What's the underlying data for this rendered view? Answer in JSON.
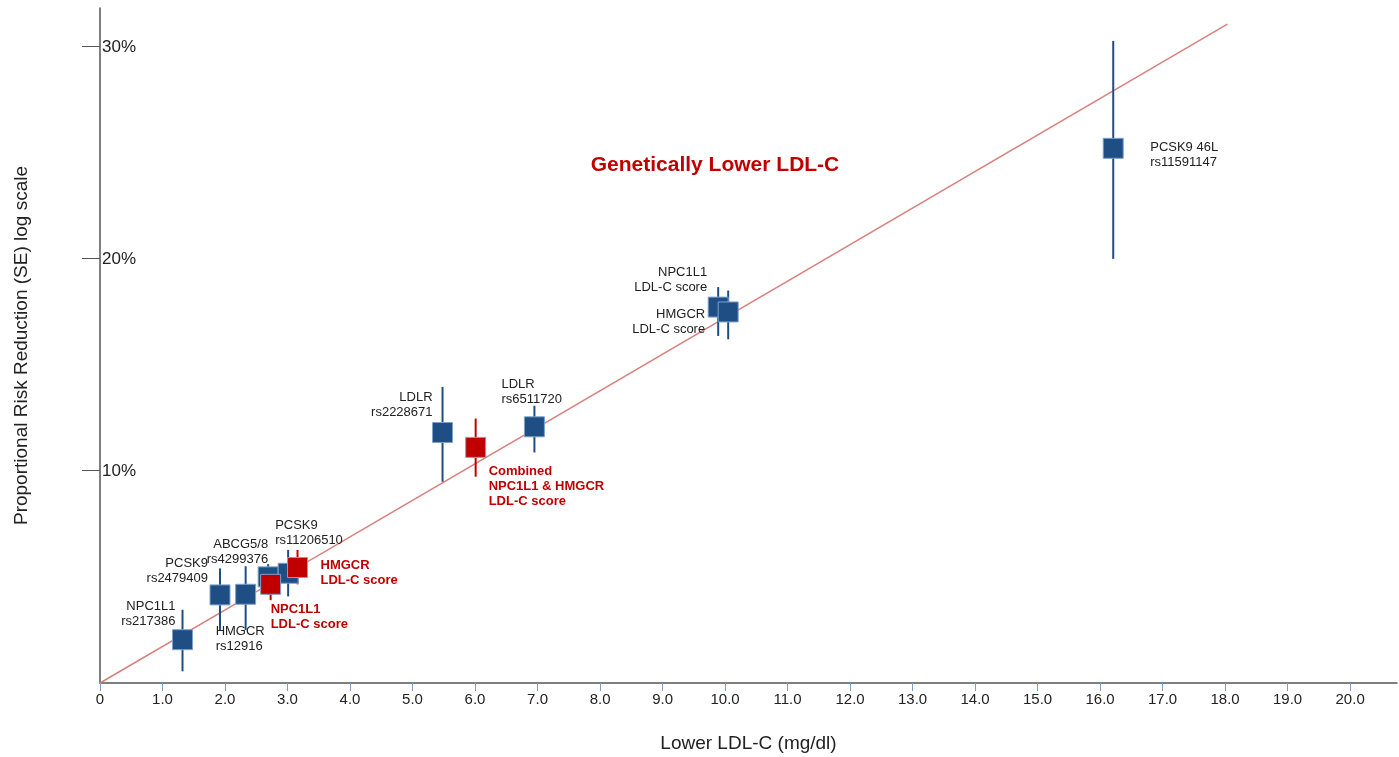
{
  "chart_data": {
    "type": "scatter",
    "title": "Genetically Lower LDL-C",
    "xlabel": "Lower LDL-C (mg/dl)",
    "ylabel": "Proportional Risk Reduction (SE) log scale",
    "xlim": [
      0,
      20.75
    ],
    "ylim": [
      0,
      31.8
    ],
    "xticks": [
      0,
      {
        "value": 1,
        "label": "1.0"
      },
      {
        "value": 2,
        "label": "2.0"
      },
      {
        "value": 3,
        "label": "3.0"
      },
      {
        "value": 4,
        "label": "4.0"
      },
      {
        "value": 5,
        "label": "5.0"
      },
      {
        "value": 6,
        "label": "6.0"
      },
      {
        "value": 7,
        "label": "7.0"
      },
      {
        "value": 8,
        "label": "8.0"
      },
      {
        "value": 9,
        "label": "9.0"
      },
      {
        "value": 10,
        "label": "10.0"
      },
      {
        "value": 11,
        "label": "11.0"
      },
      {
        "value": 12,
        "label": "12.0"
      },
      {
        "value": 13,
        "label": "13.0"
      },
      {
        "value": 14,
        "label": "14.0"
      },
      {
        "value": 15,
        "label": "15.0"
      },
      {
        "value": 16,
        "label": "16.0"
      },
      {
        "value": 17,
        "label": "17.0"
      },
      {
        "value": 18,
        "label": "18.0"
      },
      {
        "value": 19,
        "label": "19.0"
      },
      {
        "value": 20,
        "label": "20.0"
      }
    ],
    "yticks": [
      {
        "value": 10,
        "label": "10%"
      },
      {
        "value": 20,
        "label": "20%"
      },
      {
        "value": 30,
        "label": "30%"
      }
    ],
    "marker": "square",
    "grid": false,
    "series": [
      {
        "type": "line",
        "color": "#d9817e",
        "marker": "none",
        "x": [
          0,
          18.03
        ],
        "values": [
          0,
          31.03
        ]
      },
      {
        "color": "#1f4e85",
        "x": [
          1.32,
          1.92,
          2.33,
          2.69,
          3.01,
          5.48,
          6.95,
          9.89,
          10.05,
          16.21
        ],
        "values": [
          2.04,
          4.15,
          4.18,
          5.0,
          5.17,
          11.8,
          12.07,
          17.71,
          17.48,
          25.19
        ],
        "errors": [
          [
            0.55,
            3.45
          ],
          [
            2.5,
            5.4
          ],
          [
            2.5,
            5.5
          ],
          [
            4.15,
            5.6
          ],
          [
            4.08,
            6.27
          ],
          [
            9.48,
            13.95
          ],
          [
            10.86,
            13.06
          ],
          [
            16.35,
            18.65
          ],
          [
            16.19,
            18.49
          ],
          [
            19.98,
            30.25
          ]
        ]
      },
      {
        "color": "#c00000",
        "x": [
          2.73,
          3.16,
          6.01
        ],
        "values": [
          4.65,
          5.44,
          11.1
        ],
        "errors": [
          [
            3.9,
            5.4
          ],
          [
            4.65,
            6.27
          ],
          [
            9.72,
            12.46
          ]
        ]
      }
    ],
    "annotations": [
      {
        "text": "NPC1L1\nrs217386",
        "x": 1.32,
        "y": 2.04
      },
      {
        "text": "PCSK9\nrs2479409",
        "x": 1.92,
        "y": 4.15
      },
      {
        "text": "HMGCR\nrs12916",
        "x": 2.33,
        "y": 4.18
      },
      {
        "text": "ABCG5/8\nrs4299376",
        "x": 2.69,
        "y": 5.0
      },
      {
        "text": "PCSK9\nrs11206510",
        "x": 3.01,
        "y": 5.17
      },
      {
        "text": "NPC1L1\nLDL-C score",
        "x": 2.73,
        "y": 4.65
      },
      {
        "text": "HMGCR\nLDL-C score",
        "x": 3.16,
        "y": 5.44
      },
      {
        "text": "LDLR\nrs2228671",
        "x": 5.48,
        "y": 11.8
      },
      {
        "text": "Combined\nNPC1L1 & HMGCR\nLDL-C score",
        "x": 6.01,
        "y": 11.1
      },
      {
        "text": "LDLR\nrs6511720",
        "x": 6.95,
        "y": 12.07
      },
      {
        "text": "NPC1L1\nLDL-C score",
        "x": 9.89,
        "y": 17.71
      },
      {
        "text": "HMGCR\nLDL-C score",
        "x": 10.05,
        "y": 17.48
      },
      {
        "text": "PCSK9 46L\nrs11591147",
        "x": 16.21,
        "y": 25.19
      }
    ]
  }
}
